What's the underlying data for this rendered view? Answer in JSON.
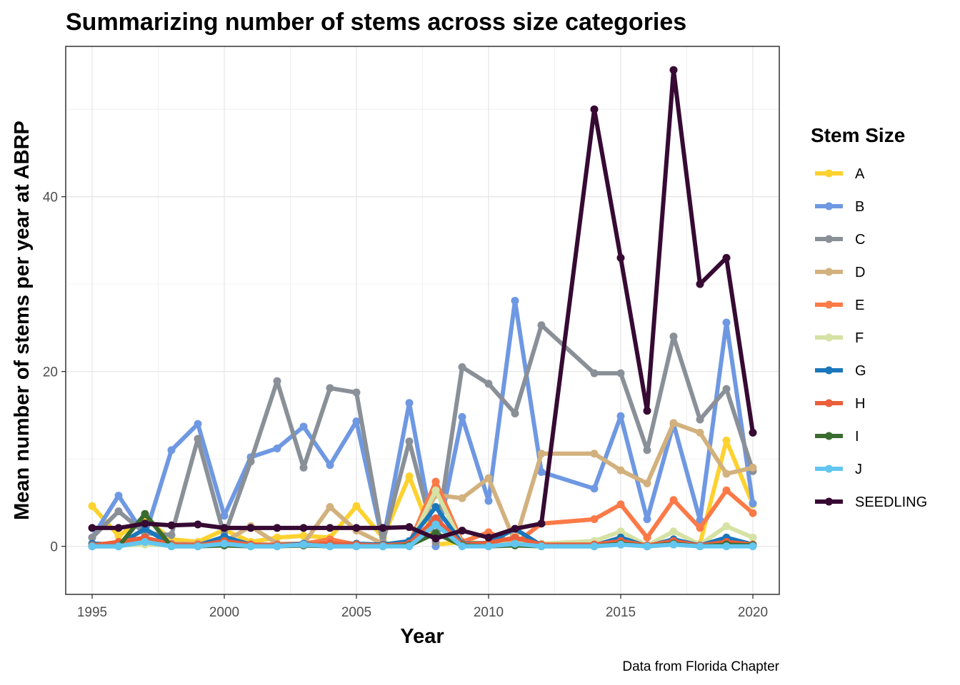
{
  "chart_data": {
    "type": "line",
    "title": "Summarizing number of stems across size categories",
    "xlabel": "Year",
    "ylabel": "Mean number of stems per year at ABRP",
    "caption": "Data from Florida Chapter",
    "legend_title": "Stem Size",
    "legend_position": "right",
    "grid": true,
    "xlim": [
      1994,
      2021
    ],
    "ylim": [
      -5.5,
      57.2
    ],
    "x_ticks": [
      1995,
      2000,
      2005,
      2010,
      2015,
      2020
    ],
    "x_tick_labels": [
      "1995",
      "2000",
      "2005",
      "2010",
      "2015",
      "2020"
    ],
    "y_ticks": [
      0,
      20,
      40
    ],
    "y_tick_labels": [
      "0",
      "20",
      "40"
    ],
    "x": [
      1995,
      1996,
      1997,
      1998,
      1999,
      2000,
      2001,
      2002,
      2003,
      2004,
      2005,
      2006,
      2007,
      2008,
      2009,
      2010,
      2011,
      2012,
      2014,
      2015,
      2016,
      2017,
      2018,
      2019,
      2020
    ],
    "series": [
      {
        "name": "A",
        "color": "#FDD22F",
        "values": [
          4.6,
          1.2,
          3.2,
          0.8,
          0.5,
          1.9,
          0.5,
          1.0,
          1.2,
          1.0,
          4.6,
          1.0,
          8.0,
          0.2,
          0.5,
          0.3,
          0.5,
          0.3,
          0.2,
          0.2,
          0.1,
          0.5,
          0.3,
          12.1,
          4.8
        ]
      },
      {
        "name": "B",
        "color": "#6F98E2",
        "values": [
          1.0,
          5.8,
          1.2,
          11.0,
          14.0,
          3.5,
          10.2,
          11.2,
          13.7,
          9.3,
          14.3,
          0.5,
          16.4,
          0.0,
          14.8,
          5.2,
          28.1,
          8.5,
          6.6,
          14.9,
          3.1,
          14.0,
          3.0,
          25.6,
          4.9
        ]
      },
      {
        "name": "C",
        "color": "#8A9097",
        "values": [
          1.0,
          4.0,
          1.5,
          1.3,
          12.3,
          1.2,
          9.7,
          18.9,
          9.0,
          18.1,
          17.6,
          0.5,
          12.0,
          0.5,
          20.5,
          18.6,
          15.2,
          25.3,
          19.8,
          19.8,
          11.0,
          24.0,
          14.5,
          18.0,
          8.6
        ]
      },
      {
        "name": "D",
        "color": "#D2B17E",
        "values": [
          0.3,
          0.3,
          0.5,
          0.3,
          0.3,
          0.5,
          2.3,
          0.3,
          0.3,
          4.5,
          1.8,
          0.3,
          0.3,
          5.9,
          5.5,
          7.8,
          0.5,
          10.6,
          10.6,
          8.7,
          7.2,
          14.1,
          13.0,
          8.3,
          9.0
        ]
      },
      {
        "name": "E",
        "color": "#FB7A47",
        "values": [
          0.2,
          0.3,
          0.8,
          0.2,
          0.2,
          0.5,
          0.2,
          0.2,
          0.3,
          0.8,
          0.2,
          0.2,
          0.3,
          7.4,
          0.5,
          1.6,
          0.3,
          2.6,
          3.1,
          4.8,
          1.0,
          5.3,
          2.1,
          6.4,
          3.8
        ]
      },
      {
        "name": "F",
        "color": "#D5E2A4",
        "values": [
          0.1,
          0.1,
          0.2,
          0.1,
          0.1,
          0.1,
          0.1,
          0.1,
          0.1,
          0.1,
          0.1,
          0.1,
          0.1,
          6.4,
          0.2,
          0.2,
          0.3,
          0.3,
          0.6,
          1.7,
          0.1,
          1.7,
          0.2,
          2.3,
          1.0
        ]
      },
      {
        "name": "G",
        "color": "#1B77BB",
        "values": [
          0.3,
          0.2,
          2.0,
          0.2,
          0.1,
          1.1,
          0.2,
          0.1,
          0.3,
          0.1,
          0.3,
          0.2,
          0.6,
          4.5,
          0.3,
          0.4,
          2.0,
          0.1,
          0.1,
          1.0,
          0.0,
          0.8,
          0.1,
          1.0,
          0.2
        ]
      },
      {
        "name": "H",
        "color": "#EB5F3B",
        "values": [
          0.1,
          0.5,
          1.0,
          0.2,
          0.1,
          0.6,
          0.2,
          0.1,
          0.2,
          0.3,
          0.2,
          0.1,
          0.3,
          3.2,
          0.2,
          0.4,
          1.0,
          0.2,
          0.2,
          0.6,
          0.1,
          0.6,
          0.1,
          0.5,
          0.2
        ]
      },
      {
        "name": "I",
        "color": "#3A6B2F",
        "values": [
          0.0,
          0.0,
          3.7,
          0.0,
          0.0,
          0.1,
          0.0,
          0.0,
          0.1,
          0.0,
          0.0,
          0.0,
          0.1,
          1.5,
          0.1,
          0.0,
          0.1,
          0.0,
          0.0,
          0.3,
          0.0,
          0.3,
          0.0,
          0.2,
          0.1
        ]
      },
      {
        "name": "J",
        "color": "#62C6EF",
        "values": [
          0.0,
          0.0,
          0.5,
          0.0,
          0.0,
          0.3,
          0.0,
          0.0,
          0.2,
          0.0,
          0.0,
          0.0,
          0.0,
          2.5,
          0.0,
          0.0,
          0.3,
          0.0,
          0.0,
          0.2,
          0.0,
          0.2,
          0.0,
          0.0,
          0.0
        ]
      },
      {
        "name": "SEEDLING",
        "color": "#360A33",
        "values": [
          2.1,
          2.1,
          2.6,
          2.4,
          2.5,
          2.1,
          2.1,
          2.1,
          2.1,
          2.1,
          2.1,
          2.1,
          2.2,
          0.9,
          1.8,
          1.0,
          2.0,
          2.6,
          50.0,
          33.0,
          15.5,
          54.5,
          30.0,
          33.0,
          13.0
        ]
      }
    ]
  }
}
